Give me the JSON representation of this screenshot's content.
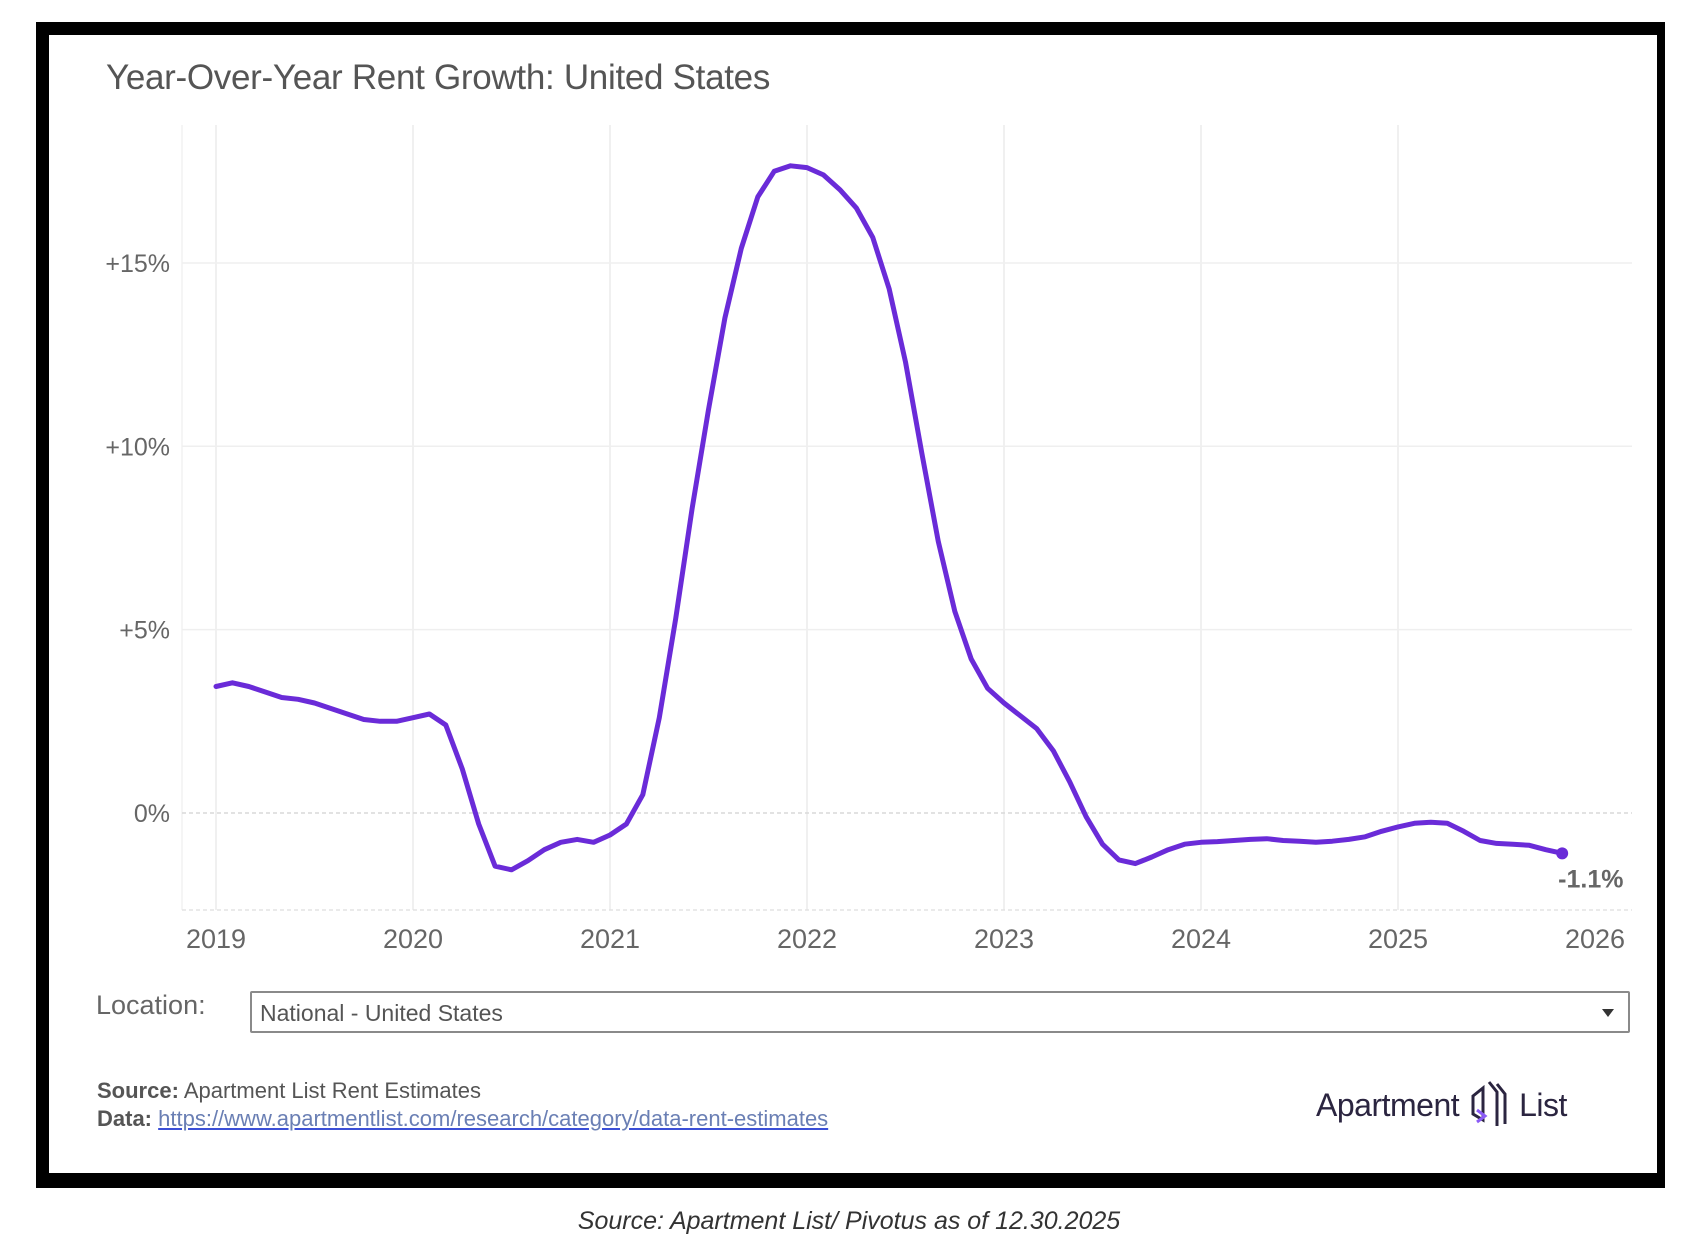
{
  "caption": "Source: Apartment List/ Pivotus as of 12.30.2025",
  "controls": {
    "location_label": "Location:",
    "location_value": "National - United States"
  },
  "footer": {
    "source_label": "Source:",
    "source_text": "Apartment List Rent Estimates",
    "data_label": "Data:",
    "data_link": "https://www.apartmentlist.com/research/category/data-rent-estimates",
    "logo_word1": "Apartment",
    "logo_word2": "List"
  },
  "colors": {
    "line": "#6a2bd8",
    "grid": "#ececec",
    "text": "#666666"
  },
  "chart_data": {
    "type": "line",
    "title": "Year-Over-Year Rent Growth: United States",
    "xlabel": "",
    "ylabel": "",
    "x_start": "2019-01",
    "x_frequency": "monthly",
    "xlim": [
      2019,
      2026
    ],
    "ylim": [
      -2.6,
      18.7
    ],
    "grid": true,
    "x_ticks": [
      2019,
      2020,
      2021,
      2022,
      2023,
      2024,
      2025,
      2026
    ],
    "x_tick_labels": [
      "2019",
      "2020",
      "2021",
      "2022",
      "2023",
      "2024",
      "2025",
      "2026"
    ],
    "y_ticks": [
      0,
      5,
      10,
      15
    ],
    "y_tick_labels": [
      "0%",
      "+5%",
      "+10%",
      "+15%"
    ],
    "end_label": "-1.1%",
    "series": [
      {
        "name": "National - United States",
        "values": [
          3.45,
          3.55,
          3.45,
          3.3,
          3.15,
          3.1,
          3.0,
          2.85,
          2.7,
          2.55,
          2.5,
          2.5,
          2.6,
          2.7,
          2.4,
          1.2,
          -0.3,
          -1.45,
          -1.55,
          -1.3,
          -1.0,
          -0.8,
          -0.72,
          -0.8,
          -0.6,
          -0.3,
          0.5,
          2.6,
          5.3,
          8.3,
          11.0,
          13.5,
          15.4,
          16.8,
          17.5,
          17.65,
          17.6,
          17.4,
          17.0,
          16.5,
          15.7,
          14.3,
          12.3,
          9.8,
          7.4,
          5.5,
          4.2,
          3.4,
          3.0,
          2.65,
          2.3,
          1.7,
          0.85,
          -0.1,
          -0.85,
          -1.28,
          -1.38,
          -1.2,
          -1.0,
          -0.85,
          -0.8,
          -0.78,
          -0.75,
          -0.72,
          -0.7,
          -0.75,
          -0.77,
          -0.8,
          -0.77,
          -0.72,
          -0.65,
          -0.5,
          -0.38,
          -0.28,
          -0.25,
          -0.28,
          -0.5,
          -0.75,
          -0.83,
          -0.85,
          -0.88,
          -1.0,
          -1.1
        ]
      }
    ]
  }
}
